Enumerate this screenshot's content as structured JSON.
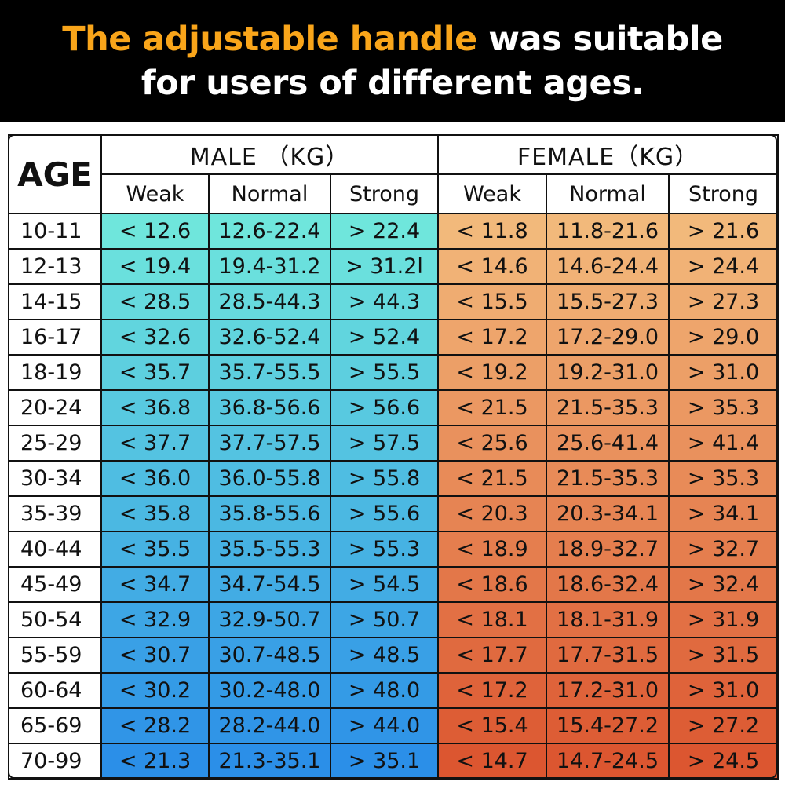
{
  "banner": {
    "highlight": "The adjustable handle",
    "rest_line1": " was suitable",
    "line2": "for users of different ages."
  },
  "colors": {
    "highlight": "#f9a51a",
    "male_top": "#6fe6dc",
    "male_bottom": "#2b8fe8",
    "female_top": "#f2b97b",
    "female_bottom": "#dc5630"
  },
  "table": {
    "age_header": "AGE",
    "male_header": "MALE （KG）",
    "female_header": "FEMALE（KG）",
    "sub_headers": [
      "Weak",
      "Normal",
      "Strong",
      "Weak",
      "Normal",
      "Strong"
    ],
    "rows": [
      {
        "age": "10-11",
        "male": [
          "< 12.6",
          "12.6-22.4",
          "> 22.4"
        ],
        "female": [
          "< 11.8",
          "11.8-21.6",
          "> 21.6"
        ]
      },
      {
        "age": "12-13",
        "male": [
          "< 19.4",
          "19.4-31.2",
          "> 31.2l"
        ],
        "female": [
          "< 14.6",
          "14.6-24.4",
          "> 24.4"
        ]
      },
      {
        "age": "14-15",
        "male": [
          "< 28.5",
          "28.5-44.3",
          "> 44.3"
        ],
        "female": [
          "< 15.5",
          "15.5-27.3",
          "> 27.3"
        ]
      },
      {
        "age": "16-17",
        "male": [
          "< 32.6",
          "32.6-52.4",
          "> 52.4"
        ],
        "female": [
          "< 17.2",
          "17.2-29.0",
          "> 29.0"
        ]
      },
      {
        "age": "18-19",
        "male": [
          "< 35.7",
          "35.7-55.5",
          "> 55.5"
        ],
        "female": [
          "< 19.2",
          "19.2-31.0",
          "> 31.0"
        ]
      },
      {
        "age": "20-24",
        "male": [
          "< 36.8",
          "36.8-56.6",
          "> 56.6"
        ],
        "female": [
          "< 21.5",
          "21.5-35.3",
          "> 35.3"
        ]
      },
      {
        "age": "25-29",
        "male": [
          "< 37.7",
          "37.7-57.5",
          "> 57.5"
        ],
        "female": [
          "< 25.6",
          "25.6-41.4",
          "> 41.4"
        ]
      },
      {
        "age": "30-34",
        "male": [
          "< 36.0",
          "36.0-55.8",
          "> 55.8"
        ],
        "female": [
          "< 21.5",
          "21.5-35.3",
          "> 35.3"
        ]
      },
      {
        "age": "35-39",
        "male": [
          "< 35.8",
          "35.8-55.6",
          "> 55.6"
        ],
        "female": [
          "< 20.3",
          "20.3-34.1",
          "> 34.1"
        ]
      },
      {
        "age": "40-44",
        "male": [
          "< 35.5",
          "35.5-55.3",
          "> 55.3"
        ],
        "female": [
          "< 18.9",
          "18.9-32.7",
          "> 32.7"
        ]
      },
      {
        "age": "45-49",
        "male": [
          "< 34.7",
          "34.7-54.5",
          "> 54.5"
        ],
        "female": [
          "< 18.6",
          "18.6-32.4",
          "> 32.4"
        ]
      },
      {
        "age": "50-54",
        "male": [
          "< 32.9",
          "32.9-50.7",
          "> 50.7"
        ],
        "female": [
          "< 18.1",
          "18.1-31.9",
          "> 31.9"
        ]
      },
      {
        "age": "55-59",
        "male": [
          "< 30.7",
          "30.7-48.5",
          "> 48.5"
        ],
        "female": [
          "< 17.7",
          "17.7-31.5",
          "> 31.5"
        ]
      },
      {
        "age": "60-64",
        "male": [
          "< 30.2",
          "30.2-48.0",
          "> 48.0"
        ],
        "female": [
          "< 17.2",
          "17.2-31.0",
          "> 31.0"
        ]
      },
      {
        "age": "65-69",
        "male": [
          "< 28.2",
          "28.2-44.0",
          "> 44.0"
        ],
        "female": [
          "< 15.4",
          "15.4-27.2",
          "> 27.2"
        ]
      },
      {
        "age": "70-99",
        "male": [
          "< 21.3",
          "21.3-35.1",
          "> 35.1"
        ],
        "female": [
          "< 14.7",
          "14.7-24.5",
          "> 24.5"
        ]
      }
    ]
  }
}
